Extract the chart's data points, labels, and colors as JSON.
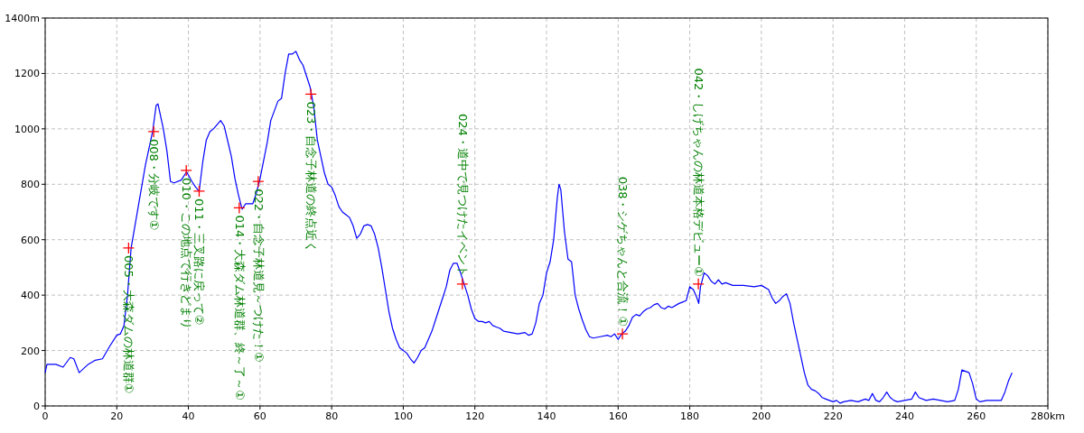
{
  "chart_data": {
    "type": "line",
    "grid": true,
    "xlim": [
      0,
      280
    ],
    "ylim": [
      0,
      1400
    ],
    "xticks": [
      0,
      20,
      40,
      60,
      80,
      100,
      120,
      140,
      160,
      180,
      200,
      220,
      240,
      260,
      {
        "value": 280,
        "label": "280km"
      }
    ],
    "yticks": [
      0,
      200,
      400,
      600,
      800,
      1000,
      1200,
      {
        "value": 1400,
        "label": "1400m"
      }
    ],
    "series": [
      {
        "color": "#0000ff",
        "x": [
          0,
          0.5,
          3,
          5,
          7,
          8,
          9.5,
          12,
          14,
          16,
          18,
          20,
          21,
          22,
          23,
          24,
          26,
          28,
          30,
          31,
          31.5,
          33,
          34,
          35,
          36,
          38,
          39.5,
          41,
          42,
          43,
          44,
          45,
          46,
          47,
          49,
          50,
          52,
          53,
          54,
          55,
          56,
          58,
          59,
          60,
          62,
          63,
          65,
          66,
          67,
          68,
          69,
          70,
          71,
          72,
          73,
          74,
          75,
          76,
          77,
          78,
          79,
          80,
          81,
          82,
          83,
          84,
          85,
          86,
          87,
          88,
          89,
          90,
          91,
          92,
          93,
          94,
          95,
          96,
          97,
          98,
          99,
          100,
          101,
          102,
          103,
          104,
          105,
          106,
          107,
          108,
          109,
          110,
          111,
          112,
          113,
          114,
          115,
          116,
          117,
          118,
          119,
          120,
          121,
          122,
          123,
          124,
          125,
          126,
          127,
          128,
          130,
          132,
          134,
          135,
          136,
          137,
          138,
          139,
          140,
          141,
          142,
          143,
          143.5,
          144,
          145,
          146,
          147,
          148,
          149,
          150,
          151,
          152,
          153,
          155,
          157,
          158,
          159,
          160,
          161,
          162,
          163,
          164,
          165,
          166,
          167,
          168,
          169,
          170,
          171,
          172,
          173,
          174,
          175,
          177,
          178,
          179,
          180,
          181,
          182,
          182.5,
          183,
          184,
          185,
          186,
          187,
          188,
          189,
          190,
          192,
          195,
          198,
          200,
          202,
          203,
          204,
          205,
          206,
          207,
          208,
          209,
          210,
          211,
          212,
          213,
          214,
          215,
          216,
          217,
          218,
          219,
          220,
          221,
          222,
          223,
          225,
          227,
          229,
          230,
          231,
          232,
          233,
          234,
          235,
          236,
          237,
          238,
          240,
          242,
          243,
          244,
          246,
          248,
          250,
          252,
          254,
          255,
          256,
          257,
          258,
          259,
          260,
          261,
          263,
          265,
          267,
          268,
          269,
          270
        ],
        "values": [
          120,
          150,
          150,
          140,
          175,
          170,
          120,
          150,
          165,
          170,
          215,
          255,
          260,
          290,
          400,
          570,
          720,
          870,
          990,
          1085,
          1090,
          1000,
          920,
          810,
          805,
          815,
          845,
          810,
          790,
          775,
          880,
          960,
          990,
          1000,
          1030,
          1010,
          900,
          820,
          760,
          710,
          730,
          730,
          770,
          820,
          950,
          1030,
          1100,
          1110,
          1200,
          1270,
          1270,
          1280,
          1250,
          1230,
          1190,
          1150,
          1080,
          960,
          900,
          840,
          800,
          790,
          760,
          720,
          700,
          690,
          680,
          650,
          605,
          620,
          650,
          655,
          650,
          620,
          570,
          500,
          420,
          340,
          280,
          240,
          210,
          200,
          190,
          170,
          155,
          175,
          200,
          210,
          240,
          270,
          310,
          350,
          390,
          430,
          490,
          515,
          515,
          480,
          440,
          400,
          350,
          315,
          305,
          305,
          300,
          305,
          290,
          285,
          280,
          270,
          265,
          260,
          265,
          255,
          260,
          300,
          370,
          400,
          480,
          520,
          600,
          750,
          800,
          780,
          630,
          530,
          520,
          400,
          350,
          310,
          275,
          250,
          245,
          250,
          255,
          250,
          260,
          240,
          260,
          270,
          290,
          320,
          330,
          325,
          340,
          350,
          355,
          365,
          370,
          355,
          350,
          360,
          355,
          370,
          375,
          380,
          430,
          420,
          390,
          370,
          430,
          480,
          470,
          450,
          440,
          455,
          440,
          445,
          435,
          435,
          430,
          435,
          420,
          390,
          370,
          380,
          395,
          405,
          370,
          300,
          240,
          180,
          120,
          75,
          60,
          55,
          45,
          30,
          25,
          20,
          15,
          20,
          10,
          15,
          20,
          15,
          25,
          20,
          45,
          20,
          15,
          30,
          50,
          30,
          20,
          15,
          20,
          25,
          50,
          30,
          20,
          25,
          20,
          15,
          20,
          60,
          130,
          125,
          120,
          80,
          25,
          15,
          20,
          20,
          20,
          50,
          90,
          120
        ]
      }
    ],
    "annotations": [
      {
        "text": "005・大森ダムの林道群①",
        "x": 23.3,
        "y": 570
      },
      {
        "text": "008・分岐です①",
        "x": 30.3,
        "y": 990
      },
      {
        "text": "010・この地点で行きどまり",
        "x": 39.4,
        "y": 850
      },
      {
        "text": "011・三叉路に戻って②",
        "x": 43,
        "y": 775
      },
      {
        "text": "014・大森ダム林道群、終～了～①",
        "x": 54.2,
        "y": 715
      },
      {
        "text": "022・自念子林道見～つけた！①",
        "x": 59.5,
        "y": 810
      },
      {
        "text": "023・自念子林道の終点近く",
        "x": 74.2,
        "y": 1125
      },
      {
        "text": "024・道中で見つけたイベント",
        "x": 116.5,
        "y": 440
      },
      {
        "text": "038・シゲちゃんと合流！①",
        "x": 161.2,
        "y": 260
      },
      {
        "text": "042・しげちゃんの林道本格デビュー①",
        "x": 182.4,
        "y": 440
      }
    ]
  }
}
